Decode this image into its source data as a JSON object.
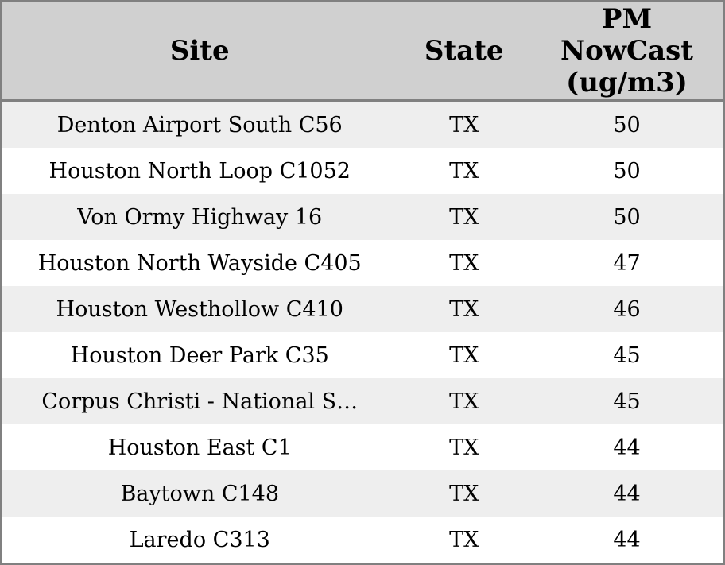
{
  "colors": {
    "border": "#808080",
    "header_bg": "#d0d0d0",
    "row_bg": "#ffffff",
    "row_alt_bg": "#eeeeee",
    "text": "#000000"
  },
  "table": {
    "columns": [
      {
        "id": "site",
        "label": "Site"
      },
      {
        "id": "state",
        "label": "State"
      },
      {
        "id": "pm_nowcast",
        "label": "PM NowCast (ug/m3)"
      }
    ],
    "rows": [
      {
        "site": "Denton Airport South C56",
        "state": "TX",
        "pm_nowcast": "50"
      },
      {
        "site": "Houston North Loop C1052",
        "state": "TX",
        "pm_nowcast": "50"
      },
      {
        "site": "Von Ormy Highway 16",
        "state": "TX",
        "pm_nowcast": "50"
      },
      {
        "site": "Houston North Wayside C405",
        "state": "TX",
        "pm_nowcast": "47"
      },
      {
        "site": "Houston Westhollow C410",
        "state": "TX",
        "pm_nowcast": "46"
      },
      {
        "site": "Houston Deer Park C35",
        "state": "TX",
        "pm_nowcast": "45"
      },
      {
        "site": "Corpus Christi - National S…",
        "state": "TX",
        "pm_nowcast": "45"
      },
      {
        "site": "Houston East C1",
        "state": "TX",
        "pm_nowcast": "44"
      },
      {
        "site": "Baytown C148",
        "state": "TX",
        "pm_nowcast": "44"
      },
      {
        "site": "Laredo C313",
        "state": "TX",
        "pm_nowcast": "44"
      }
    ]
  }
}
